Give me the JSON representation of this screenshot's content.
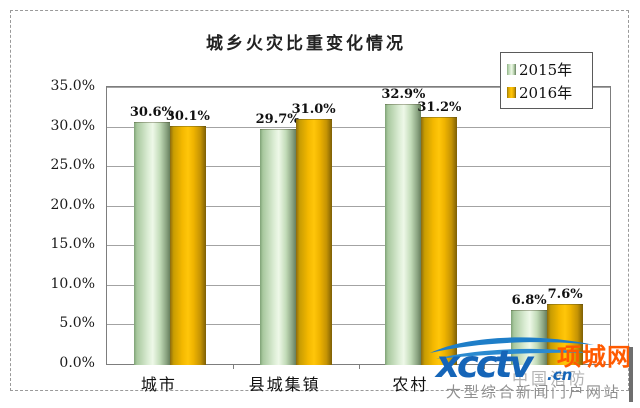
{
  "chart_data": {
    "type": "bar",
    "title": "城乡火灾比重变化情况",
    "categories": [
      "城市",
      "县城集镇",
      "农村",
      ""
    ],
    "series": [
      {
        "name": "2015年",
        "color": "#c9e4c0",
        "values": [
          30.6,
          29.7,
          32.9,
          6.8
        ],
        "labels": [
          "30.6%",
          "29.7%",
          "32.9%",
          "6.8%"
        ]
      },
      {
        "name": "2016年",
        "color": "#ffc60a",
        "values": [
          30.1,
          31.0,
          31.2,
          7.6
        ],
        "labels": [
          "30.1%",
          "31.0%",
          "31.2%",
          "7.6%"
        ]
      }
    ],
    "ylim": [
      0,
      35
    ],
    "y_tick_step": 5,
    "y_tick_labels": [
      "0.0%",
      "5.0%",
      "10.0%",
      "15.0%",
      "20.0%",
      "25.0%",
      "30.0%",
      "35.0%"
    ],
    "grid": "horizontal",
    "legend_position": "top-right",
    "xlabel": "",
    "ylabel": ""
  },
  "watermark": {
    "site_name": "xcctv",
    "domain_suffix": ".cn",
    "brand": "项城网",
    "underlay_text": "中国消防",
    "tagline": "大型综合新闻门户网站",
    "logo_color": "#1565b8",
    "brand_color": "#ff5a00",
    "tagline_color": "#8f8f8f"
  }
}
